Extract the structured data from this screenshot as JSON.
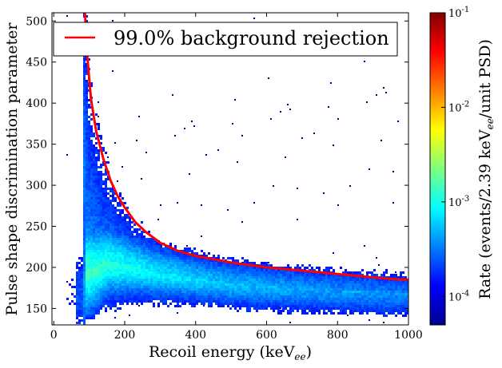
{
  "chart_data": {
    "type": "heatmap",
    "xlabel": "Recoil energy (keV",
    "xlabel_sub": "ee",
    "xlabel_close": ")",
    "ylabel": "Pulse shape discrimination parameter",
    "xlim": [
      -5,
      1000
    ],
    "ylim": [
      130,
      510
    ],
    "xticks": [
      0,
      200,
      400,
      600,
      800,
      1000
    ],
    "yticks": [
      150,
      200,
      250,
      300,
      350,
      400,
      450,
      500
    ],
    "legend": {
      "label": "99.0% background rejection",
      "position": "top",
      "color": "#ff0000"
    },
    "colorbar": {
      "label_prefix": "Rate (events/2.39 keV",
      "label_sub": "ee",
      "label_suffix": "/unit PSD)",
      "scale": "log",
      "range": [
        5e-05,
        0.1
      ],
      "ticks": [
        {
          "value": 0.0001,
          "base": "10",
          "exp": "-4"
        },
        {
          "value": 0.001,
          "base": "10",
          "exp": "-3"
        },
        {
          "value": 0.01,
          "base": "10",
          "exp": "-2"
        },
        {
          "value": 0.1,
          "base": "10",
          "exp": "-1"
        }
      ],
      "colormap": "jet"
    },
    "series": [
      {
        "name": "99.0% background rejection",
        "color": "#ff0000",
        "x": [
          88,
          95,
          105,
          120,
          140,
          160,
          180,
          200,
          230,
          260,
          300,
          350,
          400,
          450,
          500,
          550,
          600,
          650,
          700,
          750,
          800,
          850,
          900,
          950,
          1000
        ],
        "y": [
          510,
          455,
          405,
          365,
          332,
          306,
          287,
          273,
          255,
          243,
          230,
          220,
          214,
          210,
          206,
          203,
          200,
          198,
          196,
          194,
          192,
          190,
          188,
          186,
          185
        ]
      }
    ],
    "density": {
      "description_free": true,
      "band_center_y": [
        [
          100,
          200
        ],
        [
          150,
          210
        ],
        [
          200,
          205
        ],
        [
          300,
          195
        ],
        [
          400,
          188
        ],
        [
          500,
          182
        ],
        [
          600,
          178
        ],
        [
          700,
          175
        ],
        [
          800,
          172
        ],
        [
          900,
          170
        ],
        [
          1000,
          168
        ]
      ],
      "low_energy_edge_x": 85,
      "peak_rate": 0.002
    }
  }
}
